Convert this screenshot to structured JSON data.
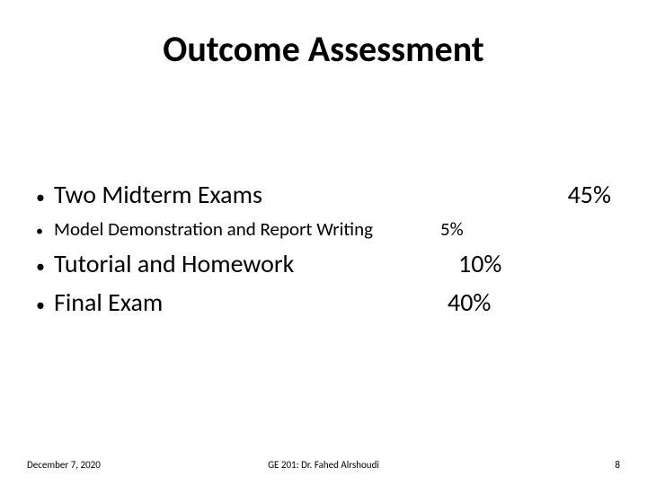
{
  "title": "Outcome Assessment",
  "items": [
    {
      "label": "Two Midterm Exams",
      "value": "45%",
      "size": "lg",
      "valueClass": "v0"
    },
    {
      "label": "Model Demonstration and Report Writing",
      "value": "5%",
      "size": "sm",
      "valueClass": "v1"
    },
    {
      "label": "Tutorial and Homework",
      "value": "10%",
      "size": "lg",
      "valueClass": "v2"
    },
    {
      "label": "Final Exam",
      "value": "40%",
      "size": "lg",
      "valueClass": "v3"
    }
  ],
  "footer": {
    "date": "December 7, 2020",
    "center": "GE 201: Dr. Fahed Alrshoudi",
    "page": "8"
  },
  "colors": {
    "background": "#ffffff",
    "text": "#000000"
  },
  "typography": {
    "title_fontsize": 40,
    "large_item_fontsize": 28,
    "small_item_fontsize": 21,
    "footer_fontsize": 11,
    "title_weight": "bold",
    "font_family": "Calibri"
  },
  "bullet_char": "•"
}
